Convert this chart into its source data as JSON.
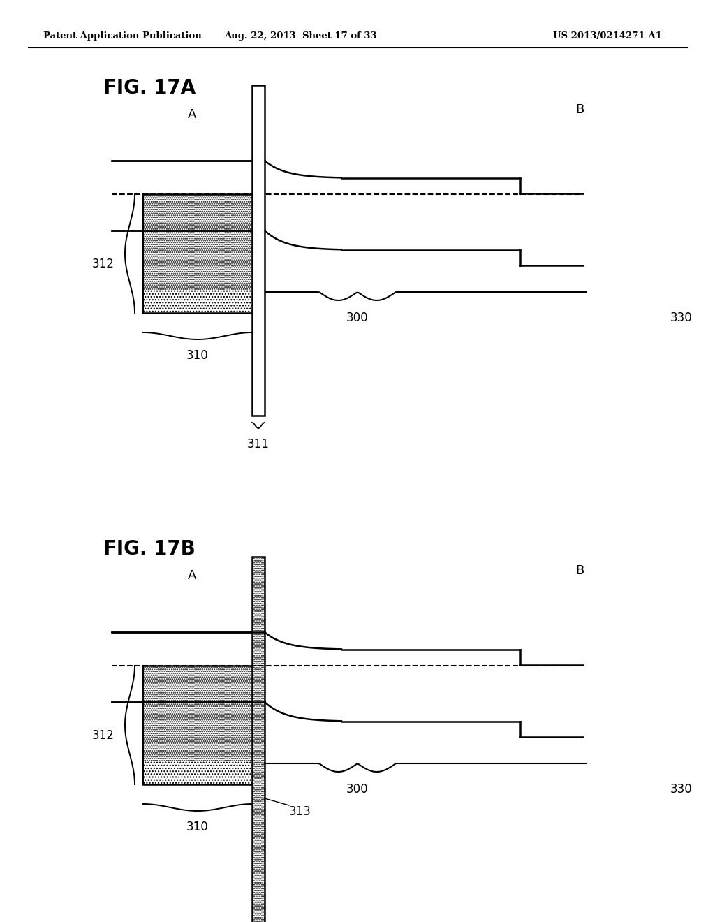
{
  "header_left": "Patent Application Publication",
  "header_mid": "Aug. 22, 2013  Sheet 17 of 33",
  "header_right": "US 2013/0214271 A1",
  "fig_title_A": "FIG. 17A",
  "fig_title_B": "FIG. 17B",
  "bg_color": "#ffffff",
  "line_color": "#000000",
  "label_A": "A",
  "label_B": "B",
  "label_310": "310",
  "label_311": "311",
  "label_312": "312",
  "label_313": "313",
  "label_300": "300",
  "label_330": "330"
}
